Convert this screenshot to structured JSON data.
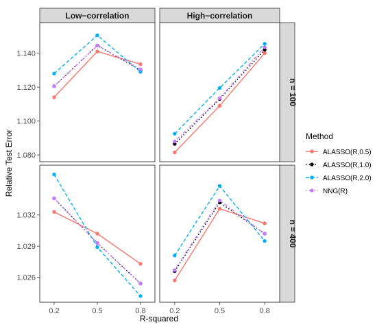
{
  "chart_data": {
    "type": "line",
    "ylabel": "Relative Test Error",
    "xlabel": "R-squared",
    "x": [
      0.2,
      0.5,
      0.8
    ],
    "x_tick_labels": [
      "0.2",
      "0.5",
      "0.8"
    ],
    "column_strips": [
      "Low−correlation",
      "High−correlation"
    ],
    "row_strips": [
      "n = 100",
      "n = 400"
    ],
    "legend": {
      "title": "Method",
      "placement": "right",
      "entries": [
        {
          "name": "ALASSO(R,0.5)",
          "color": "#F8766D",
          "dash": "solid"
        },
        {
          "name": "ALASSO(R,1.0)",
          "color": "#000000",
          "dash": "dotted"
        },
        {
          "name": "ALASSO(R,2.0)",
          "color": "#00B0F6",
          "dash": "dashed"
        },
        {
          "name": "NNG(R)",
          "color": "#C77CFF",
          "dash": "dotdash"
        }
      ]
    },
    "rows": [
      {
        "label": "n = 100",
        "ylim": [
          1.076,
          1.158
        ],
        "yticks": [
          1.08,
          1.1,
          1.12,
          1.14
        ],
        "ytick_labels": [
          "1.080",
          "1.100",
          "1.120",
          "1.140"
        ],
        "panels": [
          {
            "column": "Low−correlation",
            "series": [
              {
                "name": "ALASSO(R,0.5)",
                "values": [
                  1.114,
                  1.141,
                  1.1335
                ]
              },
              {
                "name": "ALASSO(R,1.0)",
                "values": [
                  1.1205,
                  1.1445,
                  1.13
                ]
              },
              {
                "name": "ALASSO(R,2.0)",
                "values": [
                  1.128,
                  1.1505,
                  1.129
                ]
              },
              {
                "name": "NNG(R)",
                "values": [
                  1.1205,
                  1.1445,
                  1.1305
                ]
              }
            ]
          },
          {
            "column": "High−correlation",
            "series": [
              {
                "name": "ALASSO(R,0.5)",
                "values": [
                  1.0815,
                  1.109,
                  1.14
                ]
              },
              {
                "name": "ALASSO(R,1.0)",
                "values": [
                  1.0865,
                  1.113,
                  1.142
                ]
              },
              {
                "name": "ALASSO(R,2.0)",
                "values": [
                  1.0925,
                  1.1195,
                  1.1455
                ]
              },
              {
                "name": "NNG(R)",
                "values": [
                  1.088,
                  1.1135,
                  1.1435
                ]
              }
            ]
          }
        ]
      },
      {
        "label": "n = 400",
        "ylim": [
          1.0236,
          1.0368
        ],
        "yticks": [
          1.026,
          1.029,
          1.032
        ],
        "ytick_labels": [
          "1.026",
          "1.029",
          "1.032"
        ],
        "panels": [
          {
            "column": "Low−correlation",
            "series": [
              {
                "name": "ALASSO(R,0.5)",
                "values": [
                  1.0323,
                  1.0302,
                  1.0273
                ]
              },
              {
                "name": "ALASSO(R,1.0)",
                "values": [
                  1.0336,
                  1.0293,
                  1.0254
                ]
              },
              {
                "name": "ALASSO(R,2.0)",
                "values": [
                  1.0359,
                  1.0289,
                  1.0242
                ]
              },
              {
                "name": "NNG(R)",
                "values": [
                  1.0336,
                  1.0293,
                  1.0254
                ]
              }
            ]
          },
          {
            "column": "High−correlation",
            "series": [
              {
                "name": "ALASSO(R,0.5)",
                "values": [
                  1.0257,
                  1.0326,
                  1.0312
                ]
              },
              {
                "name": "ALASSO(R,1.0)",
                "values": [
                  1.0266,
                  1.0332,
                  1.0302
                ]
              },
              {
                "name": "ALASSO(R,2.0)",
                "values": [
                  1.0281,
                  1.0348,
                  1.0295
                ]
              },
              {
                "name": "NNG(R)",
                "values": [
                  1.0267,
                  1.0334,
                  1.0302
                ]
              }
            ]
          }
        ]
      }
    ]
  }
}
